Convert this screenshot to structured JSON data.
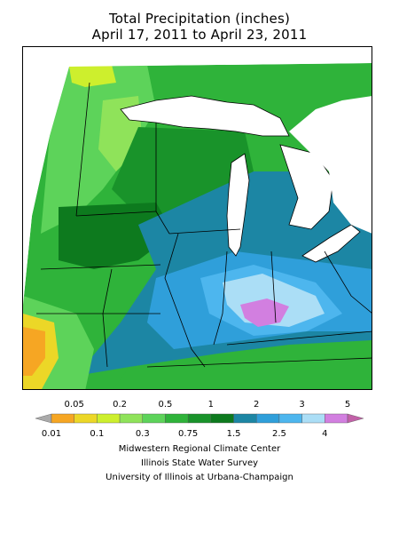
{
  "title": {
    "line1": "Total Precipitation (inches)",
    "line2": "April 17, 2011 to April 23, 2011"
  },
  "legend": {
    "colors": [
      "#aaaaaa",
      "#f6a623",
      "#ecd727",
      "#cdef2d",
      "#8fe35a",
      "#5dd35a",
      "#2fb33a",
      "#19932a",
      "#0d7a1e",
      "#1c86a4",
      "#2f9fda",
      "#4db6ee",
      "#abdef6",
      "#d27fe0",
      "#c261a8"
    ],
    "top_labels": [
      "0.05",
      "0.2",
      "0.5",
      "1",
      "2",
      "3",
      "5"
    ],
    "bottom_labels": [
      "0.01",
      "0.1",
      "0.3",
      "0.75",
      "1.5",
      "2.5",
      "4"
    ]
  },
  "credits": {
    "line1": "Midwestern Regional Climate Center",
    "line2": "Illinois State Water Survey",
    "line3": "University of Illinois at Urbana-Champaign"
  }
}
